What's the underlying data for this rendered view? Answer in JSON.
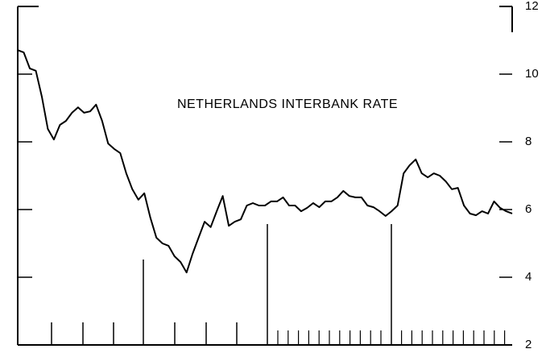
{
  "chart_data": {
    "type": "line",
    "title": "NETHERLANDS INTERBANK RATE",
    "categories": [
      null,
      null,
      null,
      null,
      null,
      null,
      null,
      null,
      null,
      null,
      null,
      null,
      null,
      null,
      null,
      null,
      null,
      null,
      null,
      null,
      null,
      null,
      null,
      null,
      null,
      null,
      null,
      null,
      null,
      null,
      null,
      null,
      null,
      null,
      null,
      null,
      null,
      null,
      null,
      null,
      null,
      null,
      null,
      null,
      null,
      null,
      null,
      null,
      null,
      null,
      null,
      null,
      null,
      null,
      null,
      null,
      null,
      null,
      null,
      null,
      null,
      null,
      null,
      null,
      null,
      null,
      null,
      null,
      null,
      null,
      null,
      null,
      null,
      null,
      null,
      null,
      null,
      null,
      null,
      null,
      null,
      null,
      null
    ],
    "values": [
      10.71,
      10.64,
      10.17,
      10.1,
      9.33,
      8.38,
      8.07,
      8.5,
      8.62,
      8.86,
      9.02,
      8.86,
      8.9,
      9.1,
      8.62,
      7.95,
      7.79,
      7.67,
      7.07,
      6.6,
      6.29,
      6.48,
      5.76,
      5.17,
      5.0,
      4.93,
      4.62,
      4.45,
      4.14,
      4.69,
      5.17,
      5.64,
      5.48,
      5.95,
      6.4,
      5.52,
      5.64,
      5.71,
      6.12,
      6.19,
      6.12,
      6.12,
      6.24,
      6.24,
      6.36,
      6.12,
      6.12,
      5.95,
      6.05,
      6.19,
      6.07,
      6.24,
      6.24,
      6.36,
      6.55,
      6.4,
      6.36,
      6.36,
      6.12,
      6.07,
      5.95,
      5.81,
      5.95,
      6.12,
      7.07,
      7.31,
      7.48,
      7.07,
      6.95,
      7.07,
      7.0,
      6.83,
      6.6,
      6.64,
      6.12,
      5.88,
      5.83,
      5.95,
      5.88,
      6.24,
      6.05,
      5.95,
      5.88
    ],
    "color": "#000000",
    "ylim": [
      2,
      12
    ],
    "yticks": [
      2,
      4,
      6,
      8,
      10,
      12
    ],
    "y_axis_side": "right"
  }
}
